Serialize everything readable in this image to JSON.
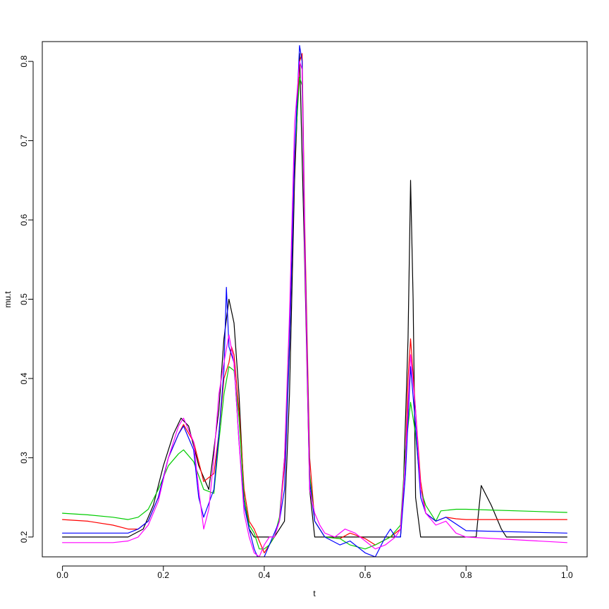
{
  "chart_data": {
    "type": "line",
    "title": "",
    "xlabel": "t",
    "ylabel": "mu.t",
    "xlim": [
      -0.04,
      1.04
    ],
    "ylim": [
      0.175,
      0.825
    ],
    "grid": false,
    "legend": "none",
    "x_ticks": [
      0.0,
      0.2,
      0.4,
      0.6,
      0.8,
      1.0
    ],
    "x_tick_labels": [
      "0.0",
      "0.2",
      "0.4",
      "0.6",
      "0.8",
      "1.0"
    ],
    "y_ticks": [
      0.2,
      0.3,
      0.4,
      0.5,
      0.6,
      0.7,
      0.8
    ],
    "y_tick_labels": [
      "0.2",
      "0.3",
      "0.4",
      "0.5",
      "0.6",
      "0.7",
      "0.8"
    ],
    "series": [
      {
        "color": "#000000",
        "x": [
          0.0,
          0.13,
          0.16,
          0.18,
          0.2,
          0.22,
          0.235,
          0.25,
          0.27,
          0.29,
          0.31,
          0.32,
          0.33,
          0.34,
          0.35,
          0.36,
          0.37,
          0.38,
          0.4,
          0.42,
          0.44,
          0.45,
          0.46,
          0.47,
          0.48,
          0.49,
          0.5,
          0.55,
          0.6,
          0.65,
          0.67,
          0.675,
          0.685,
          0.69,
          0.695,
          0.7,
          0.71,
          0.8,
          0.82,
          0.83,
          0.85,
          0.87,
          0.88,
          1.0
        ],
        "y": [
          0.2,
          0.2,
          0.21,
          0.24,
          0.29,
          0.33,
          0.35,
          0.34,
          0.29,
          0.26,
          0.36,
          0.45,
          0.5,
          0.47,
          0.38,
          0.25,
          0.21,
          0.2,
          0.2,
          0.2,
          0.22,
          0.38,
          0.65,
          0.81,
          0.55,
          0.26,
          0.2,
          0.2,
          0.2,
          0.2,
          0.2,
          0.25,
          0.45,
          0.65,
          0.5,
          0.25,
          0.2,
          0.2,
          0.2,
          0.265,
          0.24,
          0.21,
          0.2,
          0.2
        ]
      },
      {
        "color": "#ff0000",
        "x": [
          0.0,
          0.05,
          0.1,
          0.13,
          0.15,
          0.17,
          0.19,
          0.21,
          0.23,
          0.24,
          0.26,
          0.28,
          0.3,
          0.31,
          0.32,
          0.33,
          0.335,
          0.34,
          0.35,
          0.36,
          0.37,
          0.38,
          0.39,
          0.4,
          0.41,
          0.42,
          0.43,
          0.44,
          0.45,
          0.46,
          0.47,
          0.475,
          0.48,
          0.49,
          0.5,
          0.52,
          0.55,
          0.57,
          0.6,
          0.62,
          0.65,
          0.67,
          0.68,
          0.685,
          0.69,
          0.7,
          0.71,
          0.72,
          0.74,
          0.76,
          0.78,
          0.8,
          1.0
        ],
        "y": [
          0.222,
          0.22,
          0.215,
          0.21,
          0.21,
          0.22,
          0.25,
          0.3,
          0.33,
          0.342,
          0.32,
          0.27,
          0.28,
          0.33,
          0.4,
          0.42,
          0.44,
          0.43,
          0.36,
          0.26,
          0.22,
          0.21,
          0.195,
          0.18,
          0.19,
          0.2,
          0.22,
          0.29,
          0.44,
          0.67,
          0.8,
          0.81,
          0.6,
          0.3,
          0.22,
          0.2,
          0.198,
          0.205,
          0.198,
          0.19,
          0.2,
          0.21,
          0.3,
          0.4,
          0.45,
          0.36,
          0.27,
          0.23,
          0.22,
          0.225,
          0.223,
          0.222,
          0.222
        ]
      },
      {
        "color": "#00cc00",
        "x": [
          0.0,
          0.05,
          0.1,
          0.13,
          0.15,
          0.17,
          0.19,
          0.21,
          0.23,
          0.24,
          0.26,
          0.28,
          0.3,
          0.31,
          0.32,
          0.33,
          0.34,
          0.35,
          0.36,
          0.37,
          0.38,
          0.39,
          0.4,
          0.41,
          0.42,
          0.43,
          0.44,
          0.45,
          0.46,
          0.47,
          0.475,
          0.48,
          0.49,
          0.5,
          0.52,
          0.55,
          0.57,
          0.6,
          0.62,
          0.65,
          0.67,
          0.68,
          0.69,
          0.7,
          0.71,
          0.72,
          0.74,
          0.75,
          0.78,
          0.8,
          1.0
        ],
        "y": [
          0.23,
          0.228,
          0.225,
          0.222,
          0.225,
          0.235,
          0.26,
          0.29,
          0.305,
          0.31,
          0.295,
          0.26,
          0.255,
          0.32,
          0.38,
          0.415,
          0.41,
          0.35,
          0.25,
          0.215,
          0.205,
          0.185,
          0.185,
          0.19,
          0.2,
          0.225,
          0.3,
          0.45,
          0.68,
          0.78,
          0.77,
          0.58,
          0.28,
          0.22,
          0.2,
          0.198,
          0.19,
          0.185,
          0.19,
          0.2,
          0.215,
          0.31,
          0.37,
          0.33,
          0.26,
          0.24,
          0.22,
          0.233,
          0.235,
          0.235,
          0.231
        ]
      },
      {
        "color": "#0000ff",
        "x": [
          0.0,
          0.05,
          0.1,
          0.13,
          0.15,
          0.17,
          0.19,
          0.21,
          0.23,
          0.24,
          0.26,
          0.27,
          0.28,
          0.3,
          0.31,
          0.32,
          0.325,
          0.33,
          0.34,
          0.35,
          0.36,
          0.37,
          0.38,
          0.39,
          0.4,
          0.41,
          0.42,
          0.43,
          0.435,
          0.44,
          0.45,
          0.46,
          0.47,
          0.475,
          0.48,
          0.49,
          0.5,
          0.52,
          0.55,
          0.57,
          0.6,
          0.62,
          0.64,
          0.65,
          0.66,
          0.67,
          0.68,
          0.69,
          0.7,
          0.71,
          0.72,
          0.74,
          0.76,
          0.8,
          1.0
        ],
        "y": [
          0.205,
          0.205,
          0.205,
          0.205,
          0.21,
          0.22,
          0.25,
          0.3,
          0.33,
          0.34,
          0.31,
          0.25,
          0.225,
          0.26,
          0.33,
          0.41,
          0.515,
          0.44,
          0.42,
          0.32,
          0.24,
          0.21,
          0.185,
          0.17,
          0.175,
          0.19,
          0.205,
          0.22,
          0.24,
          0.26,
          0.44,
          0.68,
          0.82,
          0.8,
          0.58,
          0.27,
          0.22,
          0.2,
          0.19,
          0.195,
          0.18,
          0.175,
          0.2,
          0.21,
          0.2,
          0.2,
          0.28,
          0.415,
          0.34,
          0.25,
          0.23,
          0.22,
          0.225,
          0.208,
          0.205
        ]
      },
      {
        "color": "#ff00ff",
        "x": [
          0.0,
          0.05,
          0.1,
          0.13,
          0.15,
          0.17,
          0.19,
          0.21,
          0.23,
          0.24,
          0.26,
          0.27,
          0.28,
          0.29,
          0.3,
          0.31,
          0.32,
          0.33,
          0.34,
          0.35,
          0.36,
          0.37,
          0.38,
          0.39,
          0.4,
          0.41,
          0.42,
          0.43,
          0.44,
          0.45,
          0.46,
          0.47,
          0.475,
          0.48,
          0.49,
          0.5,
          0.51,
          0.52,
          0.54,
          0.56,
          0.58,
          0.6,
          0.62,
          0.64,
          0.66,
          0.67,
          0.68,
          0.69,
          0.7,
          0.71,
          0.72,
          0.74,
          0.76,
          0.78,
          0.8,
          1.0
        ],
        "y": [
          0.193,
          0.193,
          0.193,
          0.195,
          0.2,
          0.215,
          0.245,
          0.3,
          0.34,
          0.35,
          0.32,
          0.26,
          0.21,
          0.235,
          0.3,
          0.38,
          0.42,
          0.455,
          0.42,
          0.32,
          0.23,
          0.2,
          0.18,
          0.175,
          0.19,
          0.2,
          0.2,
          0.22,
          0.3,
          0.48,
          0.72,
          0.8,
          0.79,
          0.57,
          0.26,
          0.23,
          0.215,
          0.205,
          0.2,
          0.21,
          0.205,
          0.195,
          0.185,
          0.19,
          0.2,
          0.21,
          0.3,
          0.43,
          0.36,
          0.26,
          0.23,
          0.215,
          0.22,
          0.205,
          0.2,
          0.193
        ]
      }
    ]
  }
}
